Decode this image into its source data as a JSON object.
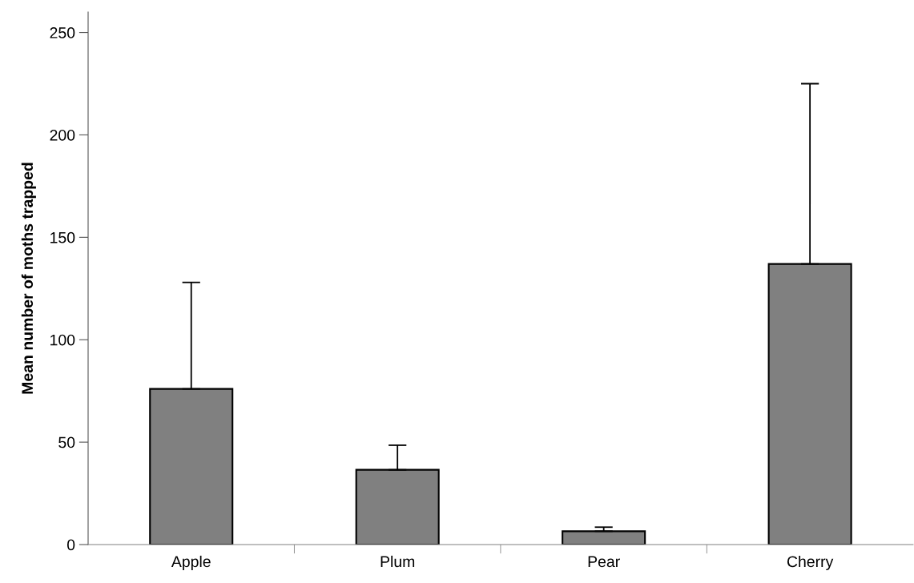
{
  "chart_data": {
    "type": "bar",
    "ylabel": "Mean number of moths trapped",
    "categories": [
      "Apple",
      "Plum",
      "Pear",
      "Cherry"
    ],
    "values": [
      76,
      36.5,
      6.5,
      137
    ],
    "errors": [
      [
        76,
        128
      ],
      [
        36.5,
        48.5
      ],
      [
        6.5,
        8.5
      ],
      [
        137,
        225
      ]
    ],
    "color": "#808080",
    "ylim": [
      0,
      260
    ],
    "yticks": [
      0,
      50,
      100,
      150,
      200,
      250
    ],
    "grid": false
  }
}
